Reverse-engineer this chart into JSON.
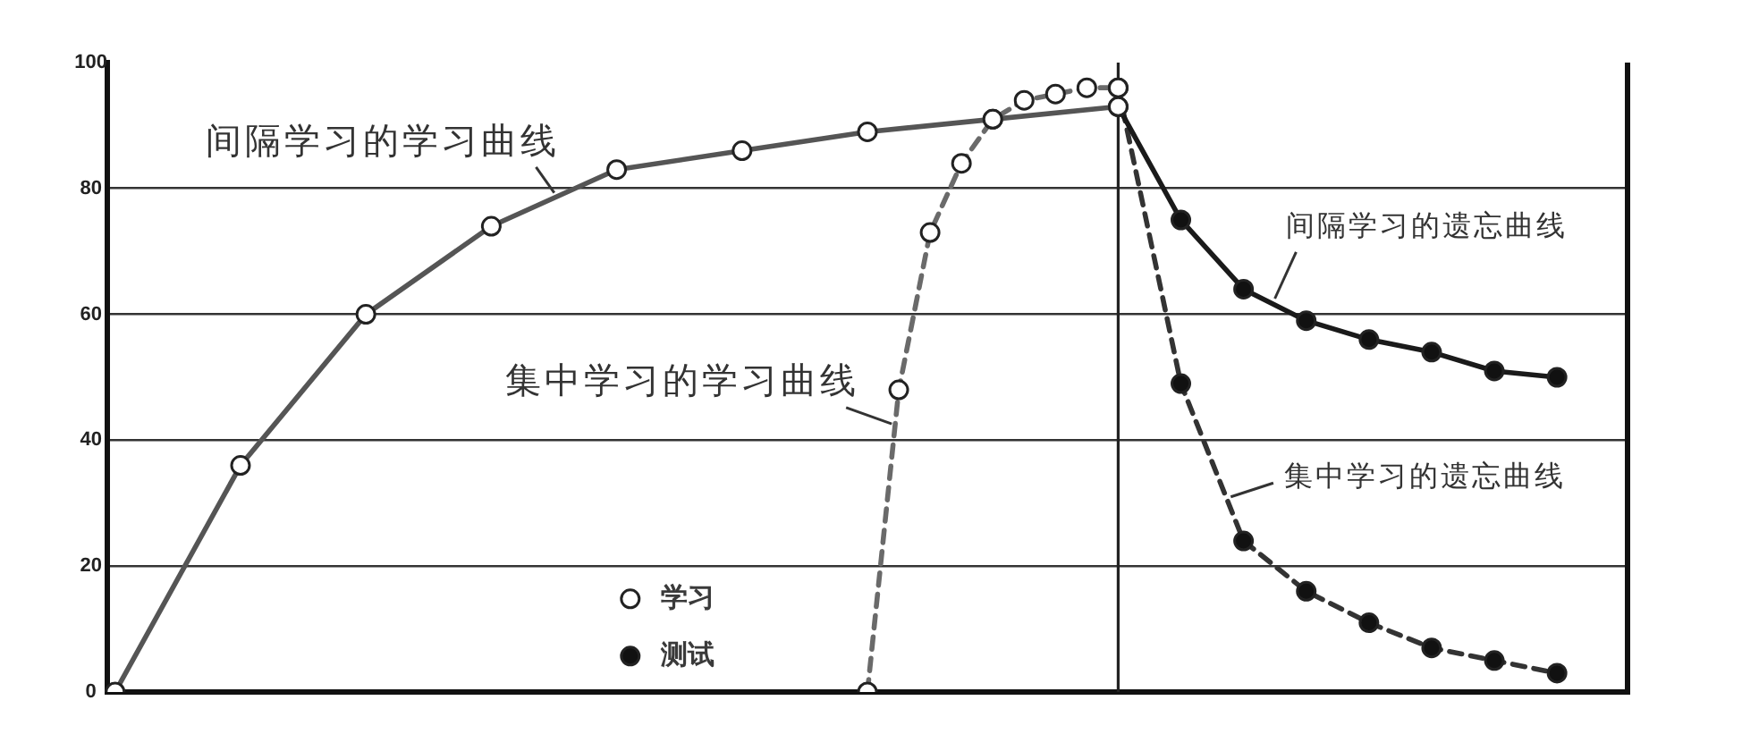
{
  "chart_data": {
    "type": "line",
    "categories": [
      null,
      null,
      null,
      null,
      null,
      null,
      null,
      null,
      null,
      null,
      null,
      null,
      null,
      null,
      null,
      null,
      null,
      null,
      null,
      null,
      null,
      null,
      null,
      null,
      null,
      null,
      null,
      null,
      null,
      null,
      null,
      null,
      null,
      null,
      null,
      null,
      null,
      null,
      null,
      null,
      null,
      null,
      null,
      null,
      null,
      null,
      null,
      null,
      null,
      null,
      null,
      null,
      null,
      null,
      null,
      null,
      null,
      null,
      null,
      null,
      null,
      null,
      null,
      null,
      null,
      null,
      null,
      null,
      null,
      null,
      null,
      null,
      null,
      null,
      null,
      null,
      null,
      null,
      null,
      null,
      null,
      null,
      null,
      null,
      null,
      null,
      null,
      null,
      null,
      null,
      null,
      null,
      null,
      null,
      null,
      null,
      null
    ],
    "series": [
      {
        "name": "学习",
        "line_style": "solid",
        "color": "#555555",
        "values": [
          0,
          null,
          null,
          null,
          null,
          null,
          null,
          null,
          36,
          null,
          null,
          null,
          null,
          null,
          null,
          null,
          60,
          null,
          null,
          null,
          null,
          null,
          null,
          null,
          74,
          null,
          null,
          null,
          null,
          null,
          null,
          null,
          83,
          null,
          null,
          null,
          null,
          null,
          null,
          null,
          86,
          null,
          null,
          null,
          null,
          null,
          null,
          null,
          89,
          null,
          null,
          null,
          null,
          null,
          null,
          null,
          91,
          null,
          null,
          null,
          null,
          null,
          null,
          null,
          93,
          null,
          null,
          null,
          null,
          null,
          null,
          null,
          null,
          null,
          null,
          null,
          null,
          null,
          null,
          null,
          null,
          null,
          null,
          null,
          null,
          null,
          null,
          null,
          null,
          null,
          null,
          null,
          null,
          null,
          null,
          null,
          null
        ],
        "colors": [
          "#ffffff",
          null,
          null,
          null,
          null,
          null,
          null,
          null,
          "#ffffff",
          null,
          null,
          null,
          null,
          null,
          null,
          null,
          "#ffffff",
          null,
          null,
          null,
          null,
          null,
          null,
          null,
          "#ffffff",
          null,
          null,
          null,
          null,
          null,
          null,
          null,
          "#ffffff",
          null,
          null,
          null,
          null,
          null,
          null,
          null,
          "#ffffff",
          null,
          null,
          null,
          null,
          null,
          null,
          null,
          "#ffffff",
          null,
          null,
          null,
          null,
          null,
          null,
          null,
          "#ffffff",
          null,
          null,
          null,
          null,
          null,
          null,
          null,
          "#ffffff",
          null,
          null,
          null,
          null,
          null,
          null,
          null,
          null,
          null,
          null,
          null,
          null,
          null,
          null,
          null,
          null,
          null,
          null,
          null,
          null,
          null,
          null,
          null,
          null,
          null,
          null,
          null,
          null,
          null,
          null,
          null,
          null
        ]
      },
      {
        "line_style": "dashed",
        "color": "#6a6a6a",
        "values": [
          null,
          null,
          null,
          null,
          null,
          null,
          null,
          null,
          null,
          null,
          null,
          null,
          null,
          null,
          null,
          null,
          null,
          null,
          null,
          null,
          null,
          null,
          null,
          null,
          null,
          null,
          null,
          null,
          null,
          null,
          null,
          null,
          null,
          null,
          null,
          null,
          null,
          null,
          null,
          null,
          null,
          null,
          null,
          null,
          null,
          null,
          null,
          null,
          0,
          null,
          48,
          null,
          73,
          null,
          84,
          null,
          91,
          null,
          94,
          null,
          95,
          null,
          96,
          null,
          96,
          null,
          null,
          null,
          null,
          null,
          null,
          null,
          null,
          null,
          null,
          null,
          null,
          null,
          null,
          null,
          null,
          null,
          null,
          null,
          null,
          null,
          null,
          null,
          null,
          null,
          null,
          null,
          null,
          null,
          null,
          null,
          null
        ],
        "colors": [
          null,
          null,
          null,
          null,
          null,
          null,
          null,
          null,
          null,
          null,
          null,
          null,
          null,
          null,
          null,
          null,
          null,
          null,
          null,
          null,
          null,
          null,
          null,
          null,
          null,
          null,
          null,
          null,
          null,
          null,
          null,
          null,
          null,
          null,
          null,
          null,
          null,
          null,
          null,
          null,
          null,
          null,
          null,
          null,
          null,
          null,
          null,
          null,
          "#ffffff",
          null,
          "#ffffff",
          null,
          "#ffffff",
          null,
          "#ffffff",
          null,
          "#ffffff",
          null,
          "#ffffff",
          null,
          "#ffffff",
          null,
          "#ffffff",
          null,
          "#ffffff",
          null,
          null,
          null,
          null,
          null,
          null,
          null,
          null,
          null,
          null,
          null,
          null,
          null,
          null,
          null,
          null,
          null,
          null,
          null,
          null,
          null,
          null,
          null,
          null,
          null,
          null,
          null,
          null,
          null,
          null,
          null,
          null
        ]
      },
      {
        "name": "测试",
        "line_style": "solid",
        "color": "#1a1a1a",
        "values": [
          null,
          null,
          null,
          null,
          null,
          null,
          null,
          null,
          null,
          null,
          null,
          null,
          null,
          null,
          null,
          null,
          null,
          null,
          null,
          null,
          null,
          null,
          null,
          null,
          null,
          null,
          null,
          null,
          null,
          null,
          null,
          null,
          null,
          null,
          null,
          null,
          null,
          null,
          null,
          null,
          null,
          null,
          null,
          null,
          null,
          null,
          null,
          null,
          null,
          null,
          null,
          null,
          null,
          null,
          null,
          null,
          null,
          null,
          null,
          null,
          null,
          null,
          null,
          null,
          93,
          null,
          null,
          null,
          75,
          null,
          null,
          null,
          64,
          null,
          null,
          null,
          59,
          null,
          null,
          null,
          56,
          null,
          null,
          null,
          54,
          null,
          null,
          null,
          51,
          null,
          null,
          null,
          50,
          null,
          null,
          null,
          null
        ],
        "colors": [
          null,
          null,
          null,
          null,
          null,
          null,
          null,
          null,
          null,
          null,
          null,
          null,
          null,
          null,
          null,
          null,
          null,
          null,
          null,
          null,
          null,
          null,
          null,
          null,
          null,
          null,
          null,
          null,
          null,
          null,
          null,
          null,
          null,
          null,
          null,
          null,
          null,
          null,
          null,
          null,
          null,
          null,
          null,
          null,
          null,
          null,
          null,
          null,
          null,
          null,
          null,
          null,
          null,
          null,
          null,
          null,
          null,
          null,
          null,
          null,
          null,
          null,
          null,
          null,
          "#111111",
          null,
          null,
          null,
          "#111111",
          null,
          null,
          null,
          "#111111",
          null,
          null,
          null,
          "#111111",
          null,
          null,
          null,
          "#111111",
          null,
          null,
          null,
          "#111111",
          null,
          null,
          null,
          "#111111",
          null,
          null,
          null,
          "#111111",
          null,
          null,
          null,
          null
        ]
      },
      {
        "line_style": "dashed",
        "color": "#333333",
        "values": [
          null,
          null,
          null,
          null,
          null,
          null,
          null,
          null,
          null,
          null,
          null,
          null,
          null,
          null,
          null,
          null,
          null,
          null,
          null,
          null,
          null,
          null,
          null,
          null,
          null,
          null,
          null,
          null,
          null,
          null,
          null,
          null,
          null,
          null,
          null,
          null,
          null,
          null,
          null,
          null,
          null,
          null,
          null,
          null,
          null,
          null,
          null,
          null,
          null,
          null,
          null,
          null,
          null,
          null,
          null,
          null,
          null,
          null,
          null,
          null,
          null,
          null,
          null,
          null,
          96,
          null,
          null,
          null,
          49,
          null,
          null,
          null,
          24,
          null,
          null,
          null,
          16,
          null,
          null,
          null,
          11,
          null,
          null,
          null,
          7,
          null,
          null,
          null,
          5,
          null,
          null,
          null,
          3,
          null,
          null,
          null,
          null
        ],
        "colors": [
          null,
          null,
          null,
          null,
          null,
          null,
          null,
          null,
          null,
          null,
          null,
          null,
          null,
          null,
          null,
          null,
          null,
          null,
          null,
          null,
          null,
          null,
          null,
          null,
          null,
          null,
          null,
          null,
          null,
          null,
          null,
          null,
          null,
          null,
          null,
          null,
          null,
          null,
          null,
          null,
          null,
          null,
          null,
          null,
          null,
          null,
          null,
          null,
          null,
          null,
          null,
          null,
          null,
          null,
          null,
          null,
          null,
          null,
          null,
          null,
          null,
          null,
          null,
          null,
          "#111111",
          null,
          null,
          null,
          "#111111",
          null,
          null,
          null,
          "#111111",
          null,
          null,
          null,
          "#111111",
          null,
          null,
          null,
          "#111111",
          null,
          null,
          null,
          "#111111",
          null,
          null,
          null,
          "#111111",
          null,
          null,
          null,
          "#111111",
          null,
          null,
          null,
          null
        ]
      }
    ],
    "ylim": [
      0,
      100
    ],
    "yticks": [
      0,
      20,
      40,
      60,
      80,
      100
    ],
    "grid": "y",
    "legend": "bottom",
    "marker": "circle",
    "tick_labels": "y",
    "annotations": [
      "间隔学习的学习曲线",
      "集中学习的学习曲线",
      "间隔学习的遗忘曲线",
      "集中学习的遗忘曲线"
    ]
  }
}
